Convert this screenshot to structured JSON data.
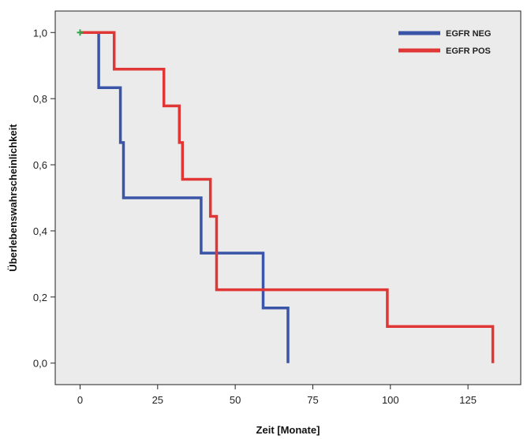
{
  "chart_data": {
    "type": "line",
    "subtype": "kaplan-meier step",
    "title": "",
    "xlabel": "Zeit [Monate]",
    "ylabel": "Überlebenswahrscheinlichkeit",
    "xlim": [
      -8,
      142
    ],
    "ylim": [
      -0.065,
      1.065
    ],
    "x_ticks": [
      0,
      25,
      50,
      75,
      100,
      125
    ],
    "x_tick_labels": [
      "0",
      "25",
      "50",
      "75",
      "100",
      "125"
    ],
    "y_ticks": [
      0.0,
      0.2,
      0.4,
      0.6,
      0.8,
      1.0
    ],
    "y_tick_labels": [
      "0,0",
      "0,2",
      "0,4",
      "0,6",
      "0,8",
      "1,0"
    ],
    "grid": false,
    "legend_position": "top-right",
    "background_color": "#ebebeb",
    "series": [
      {
        "name": "EGFR NEG",
        "color": "#3a55a8",
        "x": [
          0,
          6,
          6,
          13,
          13,
          14,
          14,
          39,
          39,
          59,
          59,
          67,
          67
        ],
        "y": [
          1.0,
          1.0,
          0.833,
          0.833,
          0.667,
          0.667,
          0.5,
          0.5,
          0.333,
          0.333,
          0.167,
          0.167,
          0.0
        ]
      },
      {
        "name": "EGFR POS",
        "color": "#e03636",
        "x": [
          0,
          11,
          11,
          27,
          27,
          32,
          32,
          33,
          33,
          42,
          42,
          44,
          44,
          99,
          99,
          133,
          133
        ],
        "y": [
          1.0,
          1.0,
          0.889,
          0.889,
          0.778,
          0.778,
          0.667,
          0.667,
          0.556,
          0.556,
          0.444,
          0.444,
          0.222,
          0.222,
          0.111,
          0.111,
          0.0
        ]
      }
    ],
    "censor_marks": [
      {
        "x": 0,
        "y": 1.0,
        "color": "#2aa84a"
      }
    ]
  }
}
